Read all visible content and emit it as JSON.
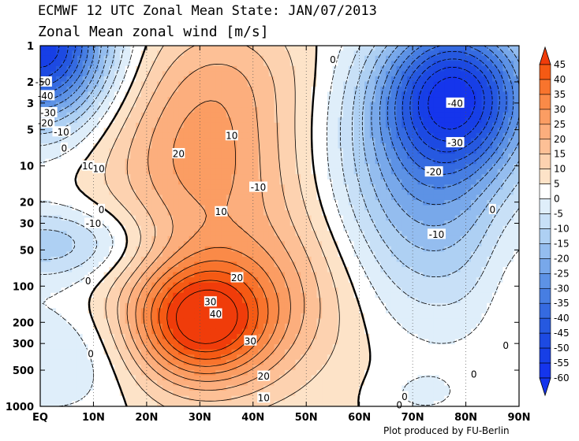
{
  "header": {
    "title": "ECMWF 12 UTC Zonal Mean State: JAN/07/2013",
    "subtitle": "Zonal Mean zonal wind [m/s]"
  },
  "footer": {
    "credit": "Plot produced by FU-Berlin"
  },
  "chart_data": {
    "type": "contour",
    "title": "ECMWF 12 UTC Zonal Mean State: JAN/07/2013",
    "subtitle": "Zonal Mean zonal wind [m/s]",
    "xlabel": "",
    "ylabel": "",
    "x_axis": {
      "ticks": [
        0,
        10,
        20,
        30,
        40,
        50,
        60,
        70,
        80,
        90
      ],
      "tick_labels": [
        "EQ",
        "10N",
        "20N",
        "30N",
        "40N",
        "50N",
        "60N",
        "70N",
        "80N",
        "90N"
      ],
      "range": [
        0,
        90
      ]
    },
    "y_axis": {
      "scale": "log",
      "inverted": true,
      "ticks": [
        1,
        2,
        3,
        5,
        10,
        20,
        30,
        50,
        100,
        200,
        300,
        500,
        1000
      ],
      "range": [
        1,
        1000
      ]
    },
    "grid": true,
    "colorbar": {
      "placement": "right",
      "levels": [
        45,
        40,
        35,
        30,
        25,
        20,
        15,
        10,
        5,
        0,
        -5,
        -10,
        -15,
        -20,
        -25,
        -30,
        -35,
        -40,
        -45,
        -50,
        -55,
        -60
      ],
      "colors": [
        "#f03c0a",
        "#f55a14",
        "#f8742d",
        "#fa8a48",
        "#fb9d63",
        "#fcae7d",
        "#fdc096",
        "#fdd2b0",
        "#fde3c8",
        "#ffffff",
        "#dfeefa",
        "#c8e0f7",
        "#aed0f3",
        "#94bdef",
        "#78a8ea",
        "#5d92e5",
        "#477ee2",
        "#356ae0",
        "#2659e0",
        "#1d4ae2",
        "#173fe6",
        "#1535ec"
      ]
    },
    "contour_labels": [
      {
        "lat": 0.5,
        "p": 2,
        "value": -50
      },
      {
        "lat": 1,
        "p": 2.6,
        "value": -40
      },
      {
        "lat": 1.5,
        "p": 3.6,
        "value": -30
      },
      {
        "lat": 1,
        "p": 4.4,
        "value": -20
      },
      {
        "lat": 4,
        "p": 5.2,
        "value": -10
      },
      {
        "lat": 4.5,
        "p": 7.1,
        "value": 0
      },
      {
        "lat": 9,
        "p": 10,
        "value": 10
      },
      {
        "lat": 11,
        "p": 10.5,
        "value": 10
      },
      {
        "lat": 26,
        "p": 7.9,
        "value": 20
      },
      {
        "lat": 36,
        "p": 5.6,
        "value": 10
      },
      {
        "lat": 41,
        "p": 15,
        "value": -10
      },
      {
        "lat": 34,
        "p": 24,
        "value": 10
      },
      {
        "lat": 11.5,
        "p": 23,
        "value": 0
      },
      {
        "lat": 10,
        "p": 30,
        "value": -10
      },
      {
        "lat": 9,
        "p": 90,
        "value": 0
      },
      {
        "lat": 37,
        "p": 85,
        "value": 20
      },
      {
        "lat": 32,
        "p": 135,
        "value": 30
      },
      {
        "lat": 33,
        "p": 170,
        "value": 40
      },
      {
        "lat": 39.5,
        "p": 285,
        "value": 30
      },
      {
        "lat": 9.5,
        "p": 365,
        "value": 0
      },
      {
        "lat": 42,
        "p": 560,
        "value": 20
      },
      {
        "lat": 42,
        "p": 850,
        "value": 10
      },
      {
        "lat": 55,
        "p": 1.3,
        "value": 0
      },
      {
        "lat": 78,
        "p": 3.0,
        "value": -40
      },
      {
        "lat": 78,
        "p": 6.4,
        "value": -30
      },
      {
        "lat": 74,
        "p": 11.2,
        "value": -20
      },
      {
        "lat": 74.5,
        "p": 37,
        "value": -10
      },
      {
        "lat": 85,
        "p": 23,
        "value": 0
      },
      {
        "lat": 68.5,
        "p": 830,
        "value": 0
      },
      {
        "lat": 81.5,
        "p": 540,
        "value": 0
      },
      {
        "lat": 67.5,
        "p": 970,
        "value": 0
      },
      {
        "lat": 87.5,
        "p": 310,
        "value": 0
      }
    ],
    "features": [
      {
        "name": "westerly jet core",
        "lat": 30,
        "p": 200,
        "max_value": 45
      },
      {
        "name": "stratospheric westerlies",
        "lat": 30,
        "p": 8,
        "value": 20
      },
      {
        "name": "polar vortex easterlies",
        "lat": 78,
        "p": 3,
        "value": -40
      },
      {
        "name": "tropical stratospheric easterlies",
        "lat": 0,
        "p": 1,
        "value": -60
      },
      {
        "name": "tropical lower-stratosphere easterlies",
        "lat": 2,
        "p": 50,
        "value": -15
      }
    ]
  }
}
